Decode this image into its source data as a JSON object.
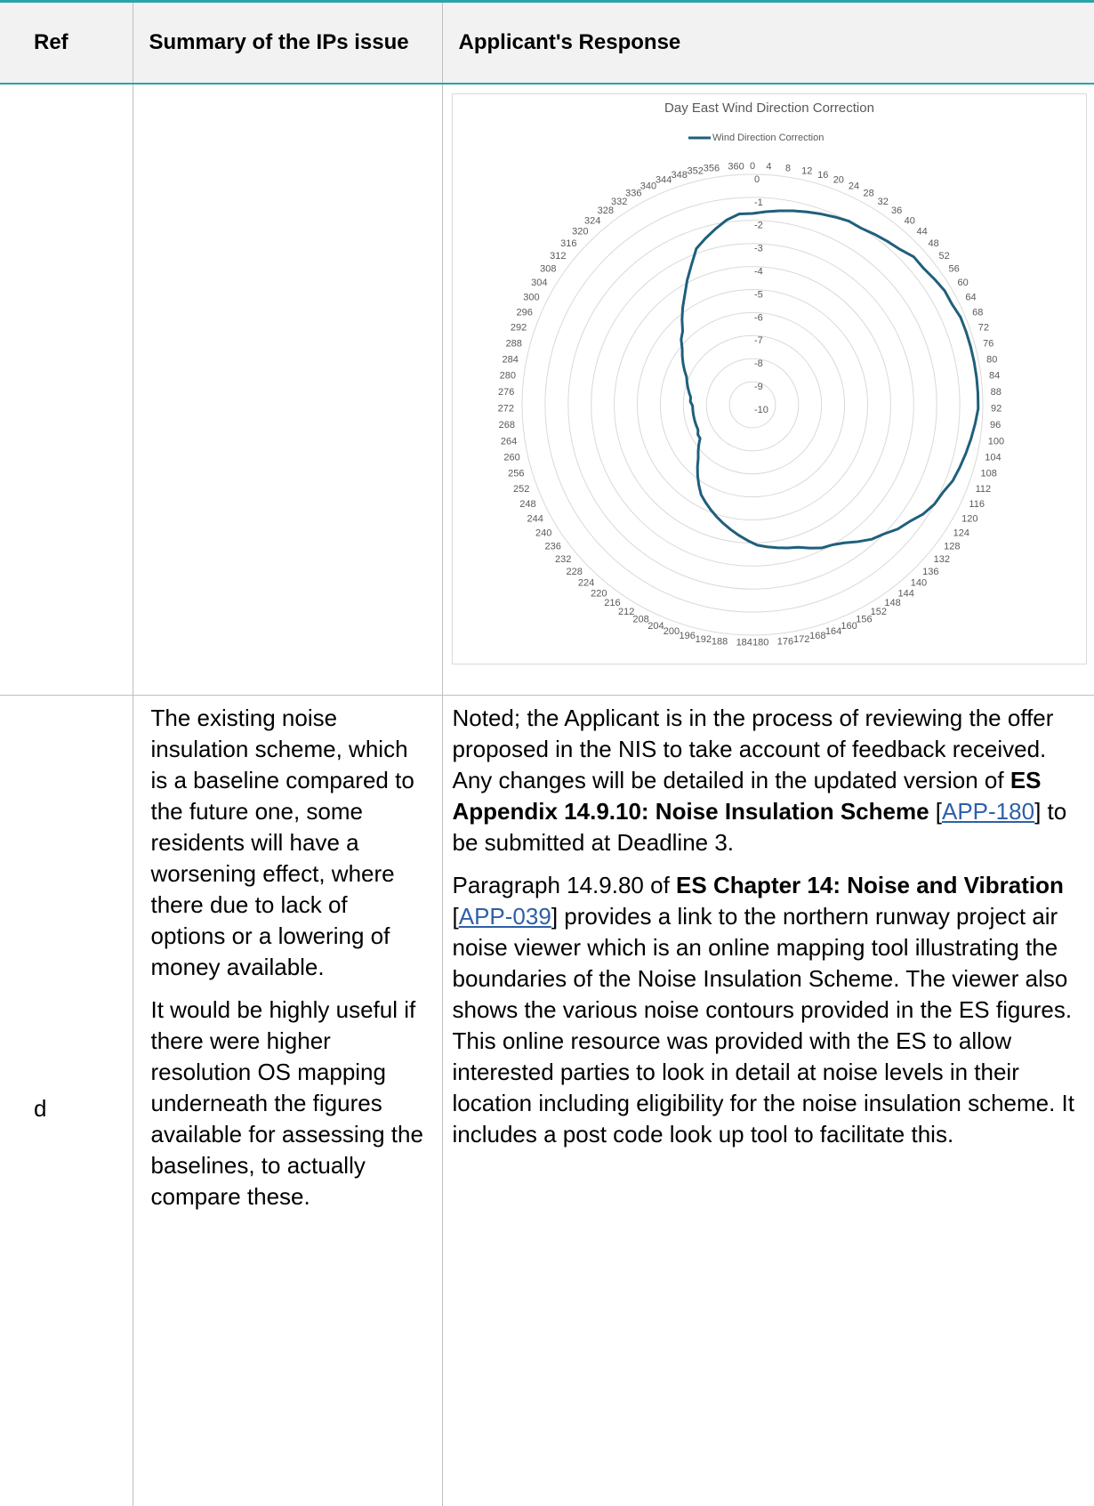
{
  "table": {
    "header": [
      "Ref",
      "Summary of the IPs issue",
      "Applicant's Response"
    ],
    "rows": [
      {
        "ref": "d",
        "summary": [
          "The existing noise insulation scheme, which is a baseline compared to the future one, some residents will have a worsening effect, where there due to lack of options or a lowering of money available.",
          "It would be highly useful if there were higher resolution OS mapping underneath the figures available for assessing the baselines, to actually compare these."
        ],
        "response": [
          [
            {
              "text": "Noted; the Applicant is in the process of reviewing the offer proposed in the NIS to take account of feedback received. Any changes will be detailed in the updated version of ",
              "style": "plain"
            },
            {
              "text": "ES Appendix 14.9.10: Noise Insulation Scheme",
              "style": "bold"
            },
            {
              "text": " [",
              "style": "plain"
            },
            {
              "text": "APP-180",
              "style": "link"
            },
            {
              "text": "] to be submitted at Deadline 3.",
              "style": "plain"
            }
          ],
          [
            {
              "text": "Paragraph 14.9.80 of ",
              "style": "plain"
            },
            {
              "text": "ES Chapter 14: Noise and Vibration",
              "style": "bold"
            },
            {
              "text": " [",
              "style": "plain"
            },
            {
              "text": "APP-039",
              "style": "link"
            },
            {
              "text": "] provides a link to the northern runway project air noise viewer which is an online mapping tool illustrating the boundaries of the Noise Insulation Scheme.  The viewer also shows the various noise contours provided in the ES figures. This online resource was provided with the ES to allow interested parties to look in detail at noise levels in their location including eligibility for the noise insulation scheme. It includes a post code look up tool to facilitate this.",
              "style": "plain"
            }
          ]
        ]
      }
    ]
  },
  "chart_data": {
    "type": "radar",
    "title": "Day East Wind Direction Correction",
    "categories": [
      0,
      4,
      8,
      12,
      16,
      20,
      24,
      28,
      32,
      36,
      40,
      44,
      48,
      52,
      56,
      60,
      64,
      68,
      72,
      76,
      80,
      84,
      88,
      92,
      96,
      100,
      104,
      108,
      112,
      116,
      120,
      124,
      128,
      132,
      136,
      140,
      144,
      148,
      152,
      156,
      160,
      164,
      168,
      172,
      176,
      180,
      184,
      188,
      192,
      196,
      200,
      204,
      208,
      212,
      216,
      220,
      224,
      228,
      232,
      236,
      240,
      244,
      248,
      252,
      256,
      260,
      264,
      268,
      272,
      276,
      280,
      284,
      288,
      292,
      296,
      300,
      304,
      308,
      312,
      316,
      320,
      324,
      328,
      332,
      336,
      340,
      344,
      348,
      352,
      356,
      360
    ],
    "series": [
      {
        "name": "Wind Direction Correction",
        "color": "#1f5f7c",
        "values": [
          -1.7,
          -1.6,
          -1.5,
          -1.4,
          -1.3,
          -1.2,
          -1.1,
          -1.0,
          -1.0,
          -0.9,
          -0.8,
          -0.7,
          -0.5,
          -0.5,
          -0.4,
          -0.3,
          -0.3,
          -0.2,
          -0.2,
          -0.2,
          -0.2,
          -0.2,
          -0.2,
          -0.2,
          -0.3,
          -0.4,
          -0.5,
          -0.6,
          -0.7,
          -0.9,
          -1.0,
          -1.2,
          -1.5,
          -1.7,
          -2.0,
          -2.2,
          -2.5,
          -2.8,
          -3.0,
          -3.1,
          -3.3,
          -3.5,
          -3.6,
          -3.7,
          -3.8,
          -3.9,
          -4.1,
          -4.3,
          -4.5,
          -4.7,
          -4.9,
          -5.1,
          -5.3,
          -5.5,
          -5.8,
          -6.1,
          -6.4,
          -6.7,
          -6.9,
          -7.1,
          -7.3,
          -7.3,
          -7.4,
          -7.4,
          -7.4,
          -7.4,
          -7.4,
          -7.4,
          -7.4,
          -7.3,
          -7.3,
          -7.2,
          -7.1,
          -7.0,
          -6.9,
          -6.7,
          -6.5,
          -6.3,
          -6.1,
          -5.8,
          -5.6,
          -5.2,
          -4.8,
          -4.4,
          -3.9,
          -3.4,
          -2.8,
          -2.5,
          -2.2,
          -1.9,
          -1.7
        ]
      }
    ],
    "rlim": [
      -10,
      0
    ],
    "rticks": [
      0,
      -1,
      -2,
      -3,
      -4,
      -5,
      -6,
      -7,
      -8,
      -9,
      -10
    ],
    "grid": true,
    "legend": "top"
  }
}
